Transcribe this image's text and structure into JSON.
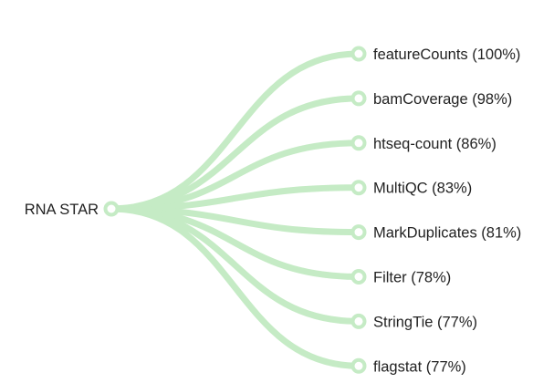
{
  "root": {
    "label": "RNA STAR"
  },
  "targets": [
    {
      "label": "featureCounts (100%)"
    },
    {
      "label": "bamCoverage (98%)"
    },
    {
      "label": "htseq-count (86%)"
    },
    {
      "label": "MultiQC (83%)"
    },
    {
      "label": "MarkDuplicates (81%)"
    },
    {
      "label": "Filter (78%)"
    },
    {
      "label": "StringTie (77%)"
    },
    {
      "label": "flagstat (77%)"
    }
  ],
  "colors": {
    "link": "#c5ebc5",
    "node_fill": "#ffffff",
    "text": "#222222"
  }
}
